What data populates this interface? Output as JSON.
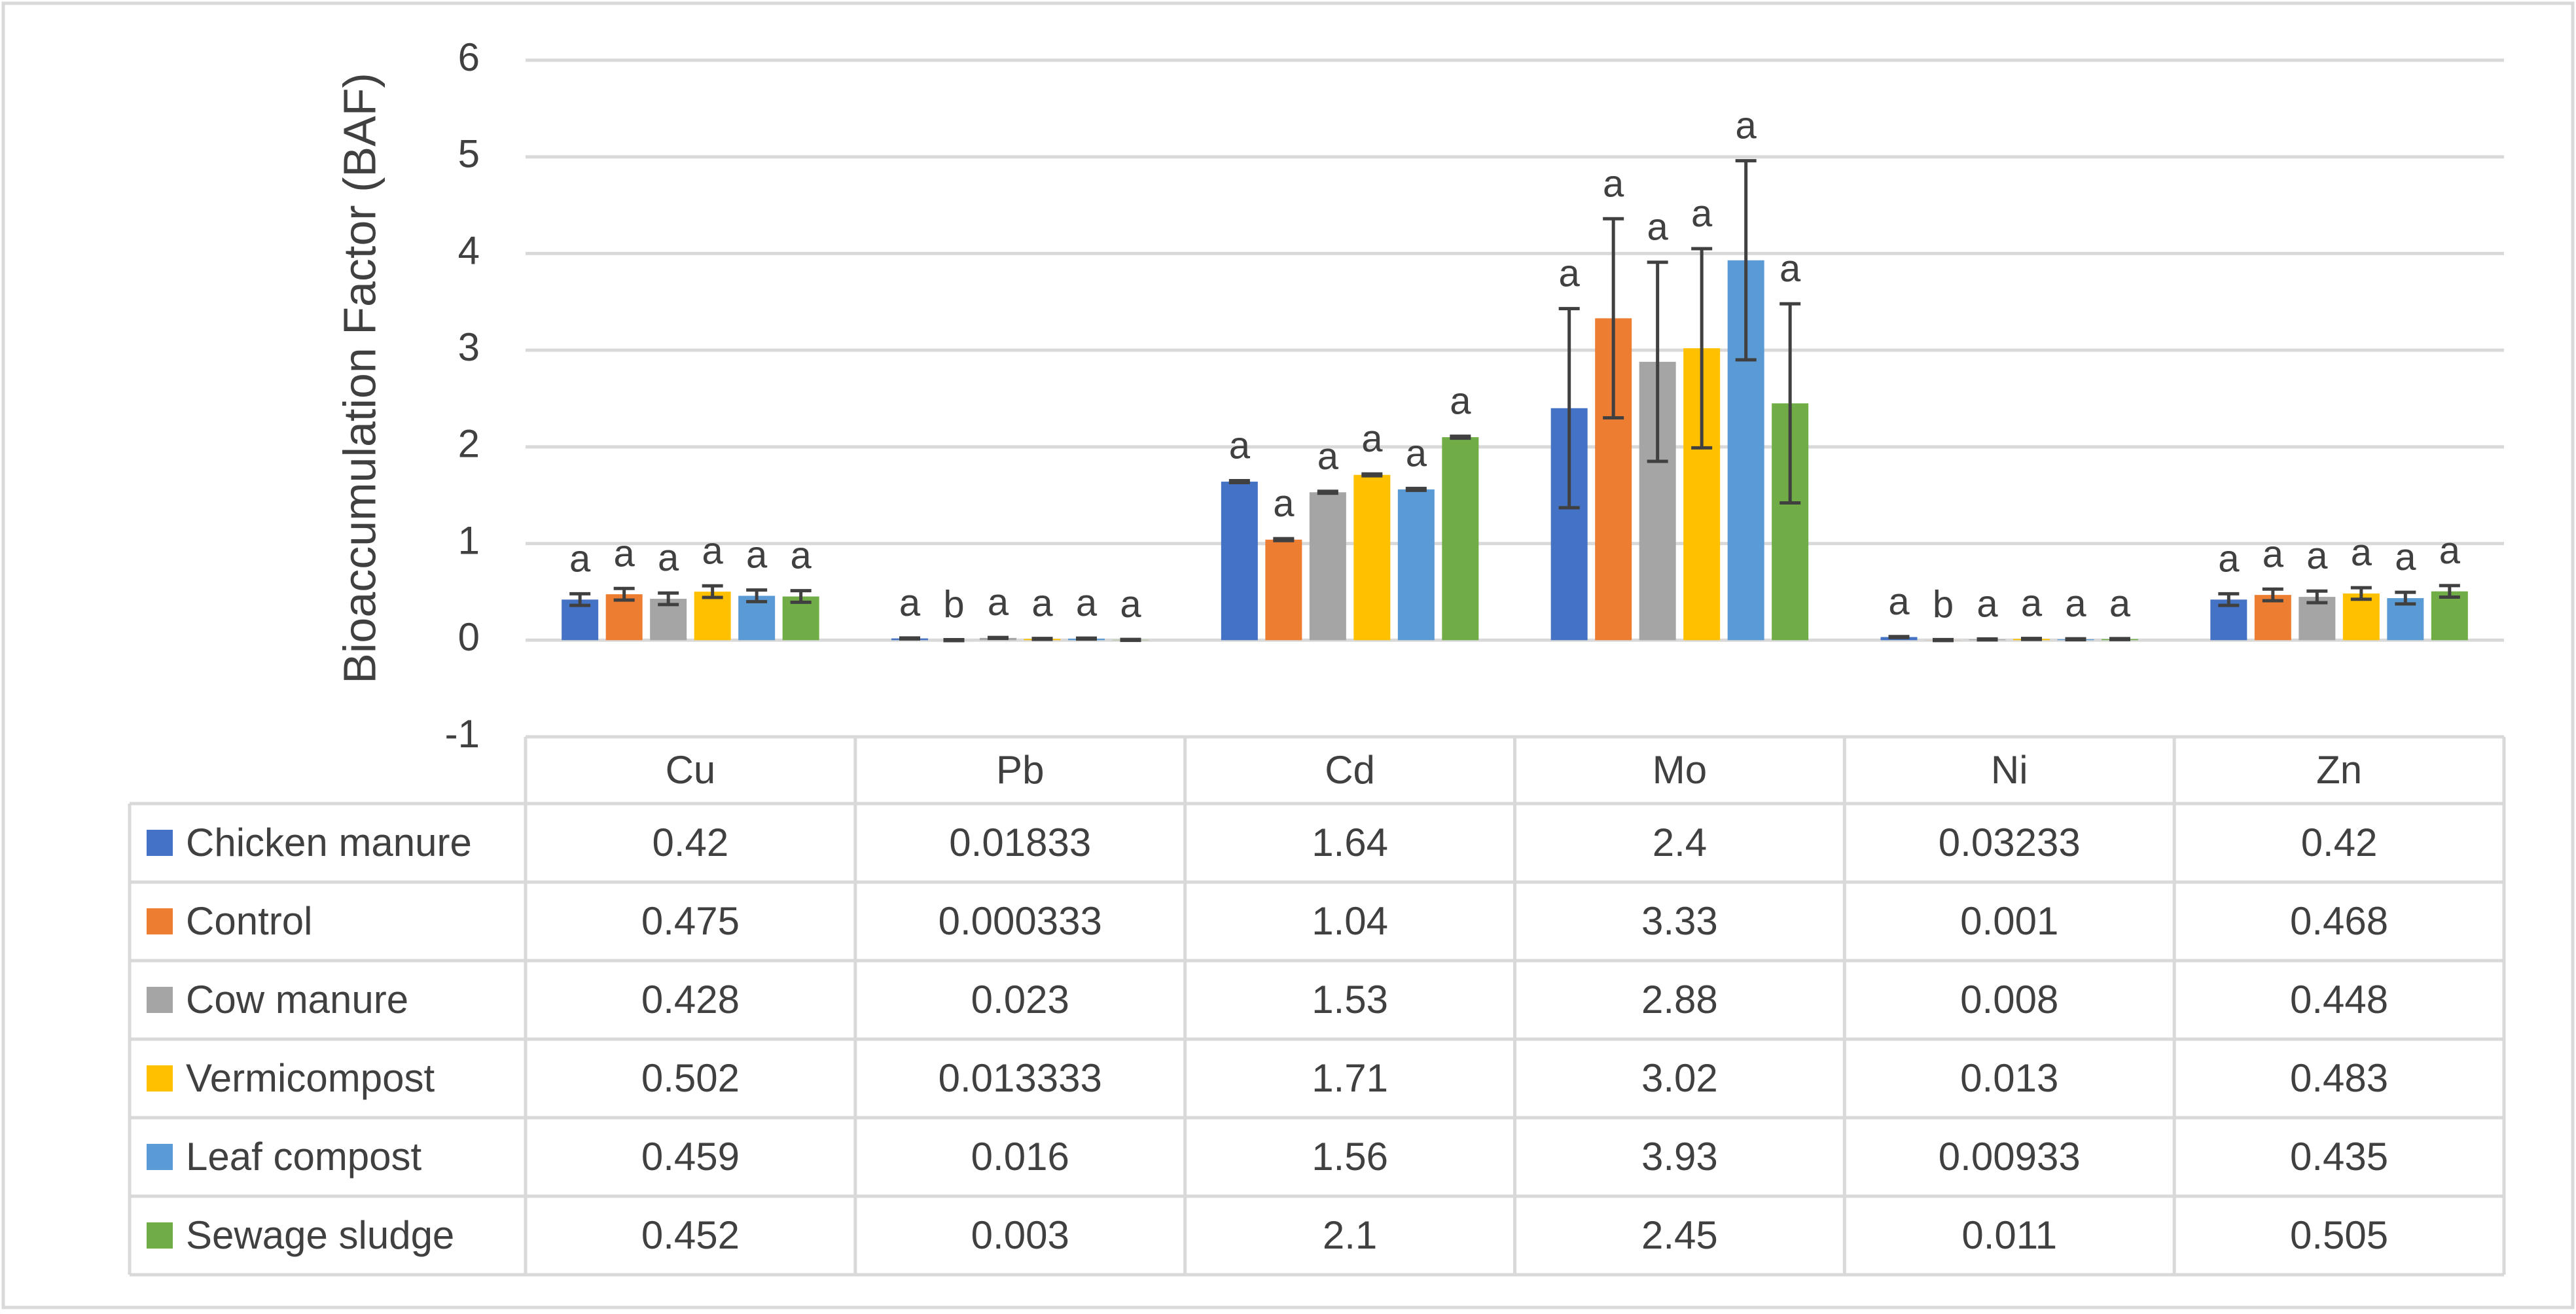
{
  "chart_data": {
    "type": "bar",
    "title": "",
    "xlabel": "",
    "ylabel": "Bioaccumulation Factor (BAF)",
    "ylim": [
      -1,
      6
    ],
    "yticks": [
      "-1",
      "0",
      "1",
      "2",
      "3",
      "4",
      "5",
      "6"
    ],
    "grid": true,
    "categories": [
      "Cu",
      "Pb",
      "Cd",
      "Mo",
      "Ni",
      "Zn"
    ],
    "series": [
      {
        "name": "Chicken manure",
        "color": "#4472C4",
        "values": [
          0.42,
          0.01833,
          1.64,
          2.4,
          0.03233,
          0.42
        ],
        "errors": [
          0.06,
          0.005,
          0.01,
          1.03,
          0.005,
          0.06
        ],
        "letters": [
          "a",
          "a",
          "a",
          "a",
          "a",
          "a"
        ],
        "labels": [
          "0.42",
          "0.01833",
          "1.64",
          "2.4",
          "0.03233",
          "0.42"
        ]
      },
      {
        "name": "Control",
        "color": "#ED7D31",
        "values": [
          0.475,
          0.000333,
          1.04,
          3.33,
          0.001,
          0.468
        ],
        "errors": [
          0.06,
          0.005,
          0.01,
          1.03,
          0.005,
          0.06
        ],
        "letters": [
          "a",
          "b",
          "a",
          "a",
          "b",
          "a"
        ],
        "labels": [
          "0.475",
          "0.000333",
          "1.04",
          "3.33",
          "0.001",
          "0.468"
        ]
      },
      {
        "name": "Cow manure",
        "color": "#A5A5A5",
        "values": [
          0.428,
          0.023,
          1.53,
          2.88,
          0.008,
          0.448
        ],
        "errors": [
          0.06,
          0.005,
          0.01,
          1.03,
          0.005,
          0.06
        ],
        "letters": [
          "a",
          "a",
          "a",
          "a",
          "a",
          "a"
        ],
        "labels": [
          "0.428",
          "0.023",
          "1.53",
          "2.88",
          "0.008",
          "0.448"
        ]
      },
      {
        "name": "Vermicompost",
        "color": "#FFC000",
        "values": [
          0.502,
          0.013333,
          1.71,
          3.02,
          0.013,
          0.483
        ],
        "errors": [
          0.06,
          0.005,
          0.01,
          1.03,
          0.005,
          0.06
        ],
        "letters": [
          "a",
          "a",
          "a",
          "a",
          "a",
          "a"
        ],
        "labels": [
          "0.502",
          "0.013333",
          "1.71",
          "3.02",
          "0.013",
          "0.483"
        ]
      },
      {
        "name": "Leaf compost",
        "color": "#5B9BD5",
        "values": [
          0.459,
          0.016,
          1.56,
          3.93,
          0.00933,
          0.435
        ],
        "errors": [
          0.06,
          0.005,
          0.01,
          1.03,
          0.005,
          0.06
        ],
        "letters": [
          "a",
          "a",
          "a",
          "a",
          "a",
          "a"
        ],
        "labels": [
          "0.459",
          "0.016",
          "1.56",
          "3.93",
          "0.00933",
          "0.435"
        ]
      },
      {
        "name": "Sewage sludge",
        "color": "#70AD47",
        "values": [
          0.452,
          0.003,
          2.1,
          2.45,
          0.011,
          0.505
        ],
        "errors": [
          0.06,
          0.005,
          0.01,
          1.03,
          0.005,
          0.06
        ],
        "letters": [
          "a",
          "a",
          "a",
          "a",
          "a",
          "a"
        ],
        "labels": [
          "0.452",
          "0.003",
          "2.1",
          "2.45",
          "0.011",
          "0.505"
        ]
      }
    ]
  }
}
